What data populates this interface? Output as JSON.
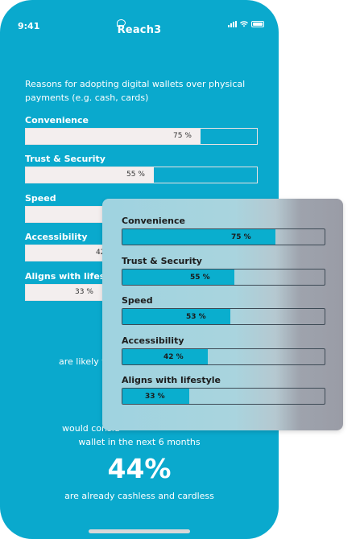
{
  "status": {
    "time": "9:41",
    "brand": "Reach3"
  },
  "survey": {
    "question": "Reasons for adopting digital wallets over physical payments (e.g. cash, cards)",
    "rows": [
      {
        "label": "Convenience",
        "value": 75,
        "value_label": "75 %"
      },
      {
        "label": "Trust & Security",
        "value": 55,
        "value_label": "55 %"
      },
      {
        "label": "Speed",
        "value": 53,
        "value_label": "53 %"
      },
      {
        "label": "Accessibility",
        "value": 42,
        "value_label": "42 %"
      },
      {
        "label": "Aligns with lifestyle",
        "value": 33,
        "value_label": "33 %"
      }
    ]
  },
  "stats": {
    "likely_partial": "are likely t",
    "consider_partial": "would consid",
    "consider_end": "wallet in the next 6 months",
    "cashless_value": "44%",
    "cashless_text": "are already cashless and cardless"
  },
  "colors": {
    "phone_bg": "#0aa9cd",
    "overlay_fill": "#0aaece",
    "bar_bg": "#f3eeee"
  }
}
